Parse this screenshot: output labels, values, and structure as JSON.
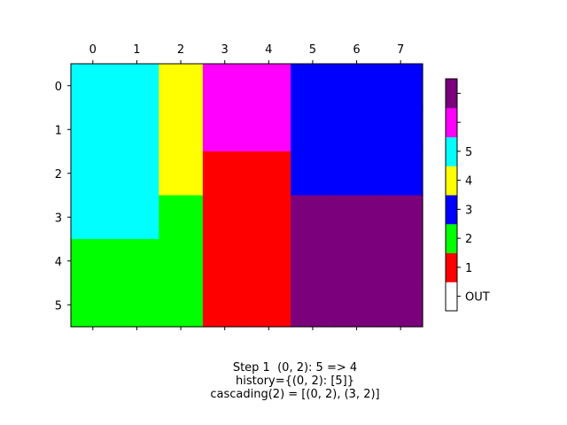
{
  "chart_data": [
    {
      "type": "heatmap",
      "x_ticks": [
        "0",
        "1",
        "2",
        "3",
        "4",
        "5",
        "6",
        "7"
      ],
      "y_ticks": [
        "0",
        "1",
        "2",
        "3",
        "4",
        "5"
      ],
      "grid": false,
      "cells": [
        [
          5,
          5,
          4,
          "m",
          "m",
          3,
          3,
          3
        ],
        [
          5,
          5,
          4,
          "m",
          "m",
          3,
          3,
          3
        ],
        [
          5,
          5,
          4,
          1,
          1,
          3,
          3,
          3
        ],
        [
          5,
          5,
          2,
          1,
          1,
          "p",
          "p",
          "p"
        ],
        [
          2,
          2,
          2,
          1,
          1,
          "p",
          "p",
          "p"
        ],
        [
          2,
          2,
          2,
          1,
          1,
          "p",
          "p",
          "p"
        ]
      ],
      "palette": {
        "OUT": "#ffffff",
        "1": "#ff0000",
        "2": "#00ff00",
        "3": "#0000ff",
        "4": "#ffff00",
        "5": "#00ffff",
        "m": "#ff00ff",
        "p": "#7b007b"
      }
    },
    {
      "type": "colorbar",
      "segments_bottom_to_top": [
        "#ffffff",
        "#ff0000",
        "#00ff00",
        "#0000ff",
        "#ffff00",
        "#00ffff",
        "#ff00ff",
        "#7b007b"
      ],
      "ticks": [
        {
          "segment": 0,
          "label": "OUT"
        },
        {
          "segment": 1,
          "label": "1"
        },
        {
          "segment": 2,
          "label": "2"
        },
        {
          "segment": 3,
          "label": "3"
        },
        {
          "segment": 4,
          "label": "4"
        },
        {
          "segment": 5,
          "label": "5"
        },
        {
          "segment": 6,
          "label": ""
        },
        {
          "segment": 7,
          "label": ""
        }
      ]
    }
  ],
  "caption": {
    "line1": "Step 1  (0, 2): 5 => 4",
    "line2": "history={(0, 2): [5]}",
    "line3": "cascading(2) = [(0, 2), (3, 2)]"
  }
}
